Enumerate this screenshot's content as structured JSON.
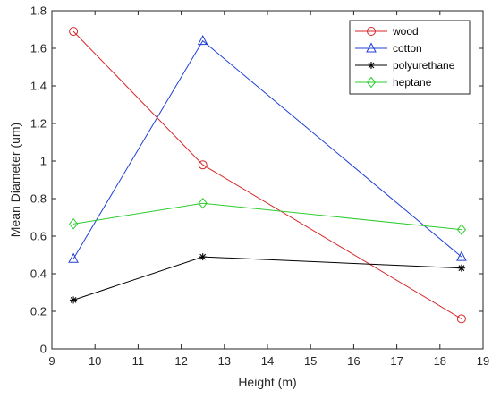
{
  "chart_data": {
    "type": "line",
    "title": "",
    "xlabel": "Height (m)",
    "ylabel": "Mean Diameter (um)",
    "xlim": [
      9,
      19
    ],
    "ylim": [
      0,
      1.8
    ],
    "x_ticks": [
      9,
      10,
      11,
      12,
      13,
      14,
      15,
      16,
      17,
      18,
      19
    ],
    "y_ticks": [
      0,
      0.2,
      0.4,
      0.6,
      0.8,
      1,
      1.2,
      1.4,
      1.6,
      1.8
    ],
    "x_tick_labels": [
      "9",
      "10",
      "11",
      "12",
      "13",
      "14",
      "15",
      "16",
      "17",
      "18",
      "19"
    ],
    "y_tick_labels": [
      "0",
      "0.2",
      "0.4",
      "0.6",
      "0.8",
      "1",
      "1.2",
      "1.4",
      "1.6",
      "1.8"
    ],
    "grid": false,
    "legend_position": "top-right",
    "x": [
      9.5,
      12.5,
      18.5
    ],
    "series": [
      {
        "name": "wood",
        "values": [
          1.69,
          0.98,
          0.16
        ],
        "color": "#d62728",
        "marker": "circle"
      },
      {
        "name": "cotton",
        "values": [
          0.48,
          1.64,
          0.49
        ],
        "color": "#1f3fd6",
        "marker": "triangle"
      },
      {
        "name": "polyurethane",
        "values": [
          0.26,
          0.49,
          0.43
        ],
        "color": "#000000",
        "marker": "asterisk"
      },
      {
        "name": "heptane",
        "values": [
          0.665,
          0.775,
          0.635
        ],
        "color": "#2ecc2e",
        "marker": "diamond"
      }
    ]
  }
}
